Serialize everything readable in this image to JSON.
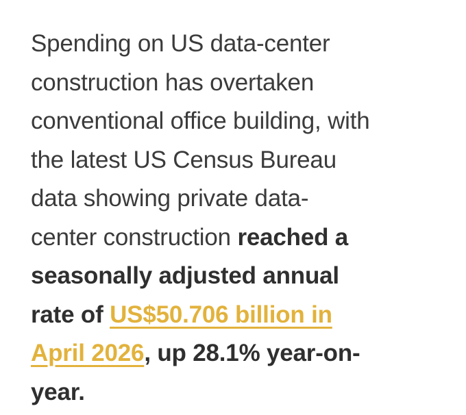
{
  "paragraph": {
    "lines": [
      [
        {
          "text": "Spending on US data-center",
          "style": "normal"
        }
      ],
      [
        {
          "text": "construction has overtaken",
          "style": "normal"
        }
      ],
      [
        {
          "text": "conventional office building, with",
          "style": "normal"
        }
      ],
      [
        {
          "text": "the latest US Census Bureau",
          "style": "normal"
        }
      ],
      [
        {
          "text": "data showing private data-",
          "style": "normal"
        }
      ],
      [
        {
          "text": "center construction ",
          "style": "normal"
        },
        {
          "text": "reached a",
          "style": "bold"
        }
      ],
      [
        {
          "text": "seasonally adjusted annual",
          "style": "bold"
        }
      ],
      [
        {
          "text": "rate of ",
          "style": "bold"
        },
        {
          "text": "US$50.706 billion in",
          "style": "link"
        }
      ],
      [
        {
          "text": "April 2026",
          "style": "link"
        },
        {
          "text": ", up 28.1% year-on-",
          "style": "bold"
        }
      ],
      [
        {
          "text": "year.",
          "style": "bold"
        }
      ]
    ]
  }
}
